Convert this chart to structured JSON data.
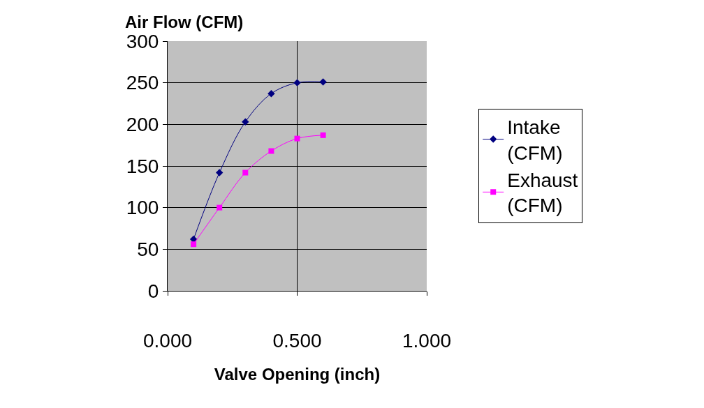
{
  "chart_data": {
    "type": "line",
    "ylabel": "Air Flow (CFM)",
    "xlabel": "Valve Opening (inch)",
    "x": [
      0.1,
      0.2,
      0.3,
      0.4,
      0.5,
      0.6
    ],
    "series": [
      {
        "name": "Intake (CFM)",
        "color": "#000080",
        "marker": "diamond",
        "values": [
          62,
          142,
          203,
          237,
          250,
          251
        ]
      },
      {
        "name": "Exhaust (CFM)",
        "color": "#ff00ff",
        "marker": "square",
        "values": [
          56,
          100,
          142,
          168,
          183,
          187
        ]
      }
    ],
    "xlim": [
      0,
      1
    ],
    "xticks": [
      {
        "value": 0,
        "label": "0.000"
      },
      {
        "value": 0.5,
        "label": "0.500"
      },
      {
        "value": 1,
        "label": "1.000"
      }
    ],
    "ylim": [
      0,
      300
    ],
    "yticks": [
      0,
      50,
      100,
      150,
      200,
      250,
      300
    ],
    "grid": true,
    "legend": "right",
    "line_style": "solid"
  }
}
